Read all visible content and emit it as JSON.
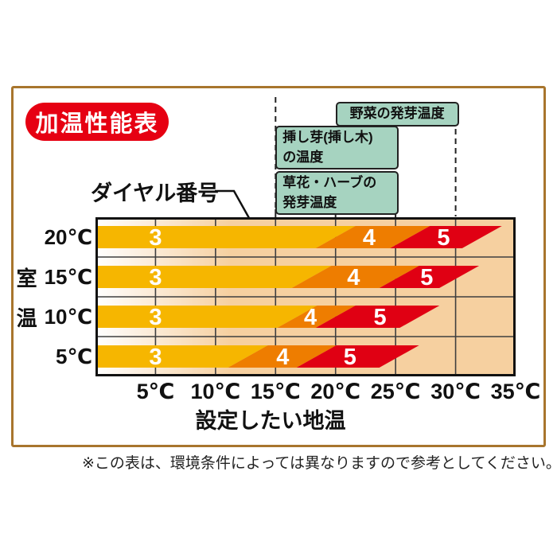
{
  "title_badge": {
    "label": "加温性能表",
    "bg": "#e60012",
    "text_color": "#ffffff"
  },
  "annotations": {
    "dial_pointer_label": "ダイヤル番号",
    "boxes": [
      {
        "name": "vegetable-germination",
        "lines": [
          "野菜の発芽温度"
        ],
        "range_c": [
          20,
          30
        ]
      },
      {
        "name": "cutting-temperature",
        "lines": [
          "挿し芽(挿し木)",
          "の温度"
        ],
        "range_c": [
          15,
          25
        ]
      },
      {
        "name": "flower-herb-germination",
        "lines": [
          "草花・ハーブの",
          "発芽温度"
        ],
        "range_c": [
          15,
          25
        ]
      }
    ],
    "box_bg": "#a6d3c0",
    "dashed_guides_c": [
      15,
      30
    ]
  },
  "footnote": "※この表は、環境条件によっては異なりますので参考としてください。",
  "chart_data": {
    "type": "bar",
    "subtype": "slanted-range-bands",
    "title": "加温性能表",
    "xlabel": "設定したい地温",
    "ylabel": "室温",
    "x_range_c": [
      0,
      35
    ],
    "x_ticks": [
      "5℃",
      "10℃",
      "15℃",
      "20℃",
      "25℃",
      "30℃",
      "35℃"
    ],
    "x_tick_values_c": [
      5,
      10,
      15,
      20,
      25,
      30,
      35
    ],
    "grid": true,
    "colors": {
      "dial3": "#f6b600",
      "dial4": "#ee7d00",
      "dial5": "#e00013",
      "plot_bg": "#f6d0a0",
      "grid": "#3f3f3f",
      "band_text": "#ffffff"
    },
    "rows": [
      {
        "room_temp": "20℃",
        "axis_prefix": "",
        "segments": [
          {
            "dial": "3",
            "start_c": 0,
            "end_c": 20.0,
            "label_c": 5.0
          },
          {
            "dial": "4",
            "start_c": 20.0,
            "end_c": 26.2,
            "label_c": 22.8
          },
          {
            "dial": "5",
            "start_c": 26.2,
            "end_c": 32.2,
            "label_c": 29.0
          }
        ]
      },
      {
        "room_temp": "15℃",
        "axis_prefix": "室",
        "segments": [
          {
            "dial": "3",
            "start_c": 0,
            "end_c": 18.0,
            "label_c": 5.0
          },
          {
            "dial": "4",
            "start_c": 18.0,
            "end_c": 25.3,
            "label_c": 21.5
          },
          {
            "dial": "5",
            "start_c": 25.3,
            "end_c": 30.3,
            "label_c": 27.6
          }
        ]
      },
      {
        "room_temp": "10℃",
        "axis_prefix": "温",
        "segments": [
          {
            "dial": "3",
            "start_c": 0,
            "end_c": 16.8,
            "label_c": 5.0
          },
          {
            "dial": "4",
            "start_c": 16.8,
            "end_c": 20.0,
            "label_c": 17.9
          },
          {
            "dial": "5",
            "start_c": 20.0,
            "end_c": 27.0,
            "label_c": 23.7
          }
        ]
      },
      {
        "room_temp": "5℃",
        "axis_prefix": "",
        "segments": [
          {
            "dial": "3",
            "start_c": 0,
            "end_c": 12.7,
            "label_c": 5.0
          },
          {
            "dial": "4",
            "start_c": 12.7,
            "end_c": 18.4,
            "label_c": 15.6
          },
          {
            "dial": "5",
            "start_c": 18.4,
            "end_c": 25.3,
            "label_c": 21.2
          }
        ]
      }
    ]
  }
}
